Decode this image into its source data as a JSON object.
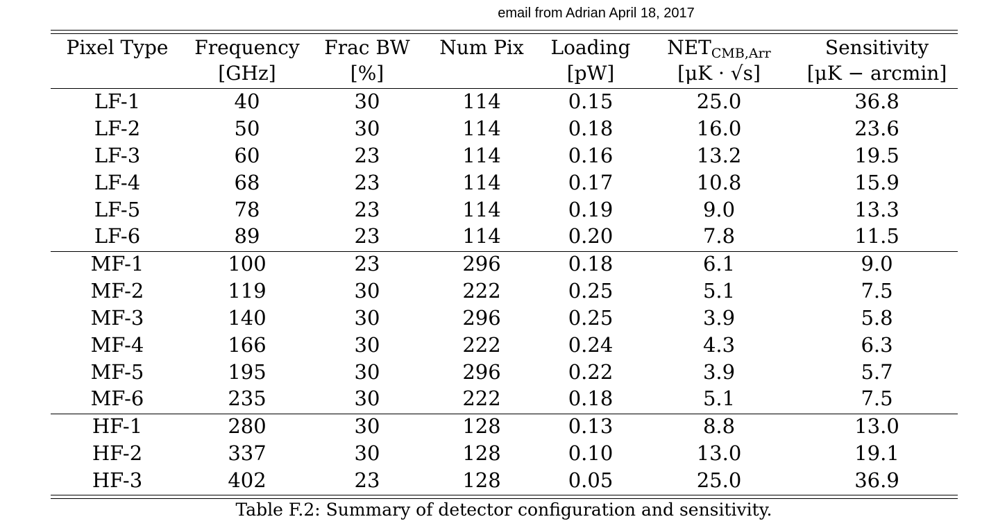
{
  "note": "email from Adrian April 18, 2017",
  "header": {
    "line1": [
      "Pixel Type",
      "Frequency",
      "Frac BW",
      "Num Pix",
      "Loading",
      "NET",
      "Sensitivity"
    ],
    "net_subscript": "CMB,Arr",
    "line2": [
      "",
      "[GHz]",
      "[%]",
      "",
      "[pW]",
      "[μK · √s]",
      "[μK − arcmin]"
    ]
  },
  "groups": [
    {
      "rows": [
        [
          "LF-1",
          "40",
          "30",
          "114",
          "0.15",
          "25.0",
          "36.8"
        ],
        [
          "LF-2",
          "50",
          "30",
          "114",
          "0.18",
          "16.0",
          "23.6"
        ],
        [
          "LF-3",
          "60",
          "23",
          "114",
          "0.16",
          "13.2",
          "19.5"
        ],
        [
          "LF-4",
          "68",
          "23",
          "114",
          "0.17",
          "10.8",
          "15.9"
        ],
        [
          "LF-5",
          "78",
          "23",
          "114",
          "0.19",
          "9.0",
          "13.3"
        ],
        [
          "LF-6",
          "89",
          "23",
          "114",
          "0.20",
          "7.8",
          "11.5"
        ]
      ]
    },
    {
      "rows": [
        [
          "MF-1",
          "100",
          "23",
          "296",
          "0.18",
          "6.1",
          "9.0"
        ],
        [
          "MF-2",
          "119",
          "30",
          "222",
          "0.25",
          "5.1",
          "7.5"
        ],
        [
          "MF-3",
          "140",
          "30",
          "296",
          "0.25",
          "3.9",
          "5.8"
        ],
        [
          "MF-4",
          "166",
          "30",
          "222",
          "0.24",
          "4.3",
          "6.3"
        ],
        [
          "MF-5",
          "195",
          "30",
          "296",
          "0.22",
          "3.9",
          "5.7"
        ],
        [
          "MF-6",
          "235",
          "30",
          "222",
          "0.18",
          "5.1",
          "7.5"
        ]
      ]
    },
    {
      "rows": [
        [
          "HF-1",
          "280",
          "30",
          "128",
          "0.13",
          "8.8",
          "13.0"
        ],
        [
          "HF-2",
          "337",
          "30",
          "128",
          "0.10",
          "13.0",
          "19.1"
        ],
        [
          "HF-3",
          "402",
          "23",
          "128",
          "0.05",
          "25.0",
          "36.9"
        ]
      ]
    }
  ],
  "caption": "Table F.2:  Summary of detector configuration and sensitivity."
}
